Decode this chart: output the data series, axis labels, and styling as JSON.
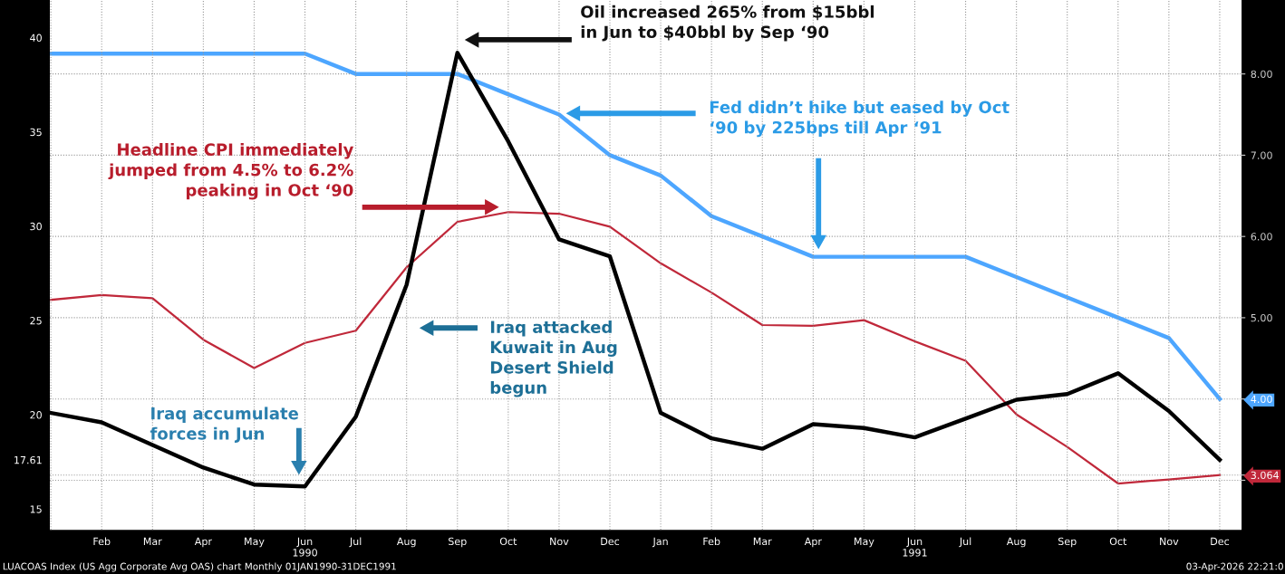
{
  "chart_data": {
    "type": "line",
    "categories": [
      null,
      "Feb",
      "Mar",
      "Apr",
      "May",
      "Jun\n1990",
      "Jul",
      "Aug",
      "Sep",
      "Oct",
      "Nov",
      "Dec",
      "Jan",
      "Feb",
      "Mar",
      "Apr",
      "May",
      "Jun\n1991",
      "Jul",
      "Aug",
      "Sep",
      "Oct",
      "Nov",
      "Dec"
    ],
    "series": [
      {
        "color": "#4da6ff",
        "axis": "y2",
        "values": [
          8.25,
          8.25,
          8.25,
          8.25,
          8.25,
          8.25,
          8.0,
          8.0,
          8.0,
          7.75,
          7.5,
          7.0,
          6.75,
          6.25,
          6.0,
          5.75,
          5.75,
          5.75,
          5.75,
          5.5,
          5.25,
          5.0,
          4.75,
          4.0
        ]
      },
      {
        "color": "#c0283a",
        "axis": "y2",
        "values": [
          5.22,
          5.28,
          5.24,
          4.73,
          4.38,
          4.69,
          4.84,
          5.62,
          6.18,
          6.3,
          6.28,
          6.12,
          5.67,
          5.31,
          4.91,
          4.9,
          4.97,
          4.71,
          4.47,
          3.81,
          3.41,
          2.96,
          3.01,
          3.064
        ]
      },
      {
        "color": "#000000",
        "values": [
          20.1,
          19.6,
          18.4,
          17.2,
          16.3,
          16.2,
          19.9,
          26.9,
          39.2,
          34.5,
          29.3,
          28.4,
          20.1,
          18.75,
          18.2,
          19.5,
          19.3,
          18.8,
          19.8,
          20.8,
          21.1,
          22.2,
          20.2,
          17.61
        ]
      }
    ],
    "ylim": [
      13.9,
      42.0
    ],
    "yticks": [
      15,
      {
        "value": 17.61,
        "label": "17.61"
      },
      20,
      25,
      30,
      35,
      40
    ],
    "y2lim": [
      2.39,
      8.91
    ],
    "y2ticks": [
      {
        "value": 3.0,
        "label": null
      },
      {
        "value": 3.064,
        "label": "3.064"
      },
      {
        "value": 4.0,
        "label": "4.00"
      },
      {
        "value": 5.0,
        "label": "5.00"
      },
      {
        "value": 6.0,
        "label": "6.00"
      },
      {
        "value": 7.0,
        "label": "7.00"
      },
      {
        "value": 8.0,
        "label": "8.00"
      }
    ],
    "grid": true,
    "line_style": "solid",
    "annotations": [
      "Oil increased 265% from $15bbl\nin Jun to $40bbl by Sep ‘90",
      "Fed didn’t hike but eased by Oct\n‘90 by 225bps till Apr ‘91",
      "Headline CPI immediately\njumped from 4.5% to 6.2%\npeaking in Oct ‘90",
      "Iraq attacked\nKuwait in Aug\nDesert Shield\nbegun",
      "Iraq accumulate\nforces in Jun",
      "LUACOAS Index (US Agg Corporate Avg OAS) chart Monthly 01JAN1990-31DEC1991",
      "03-Apr-2026 22:21:0"
    ]
  }
}
